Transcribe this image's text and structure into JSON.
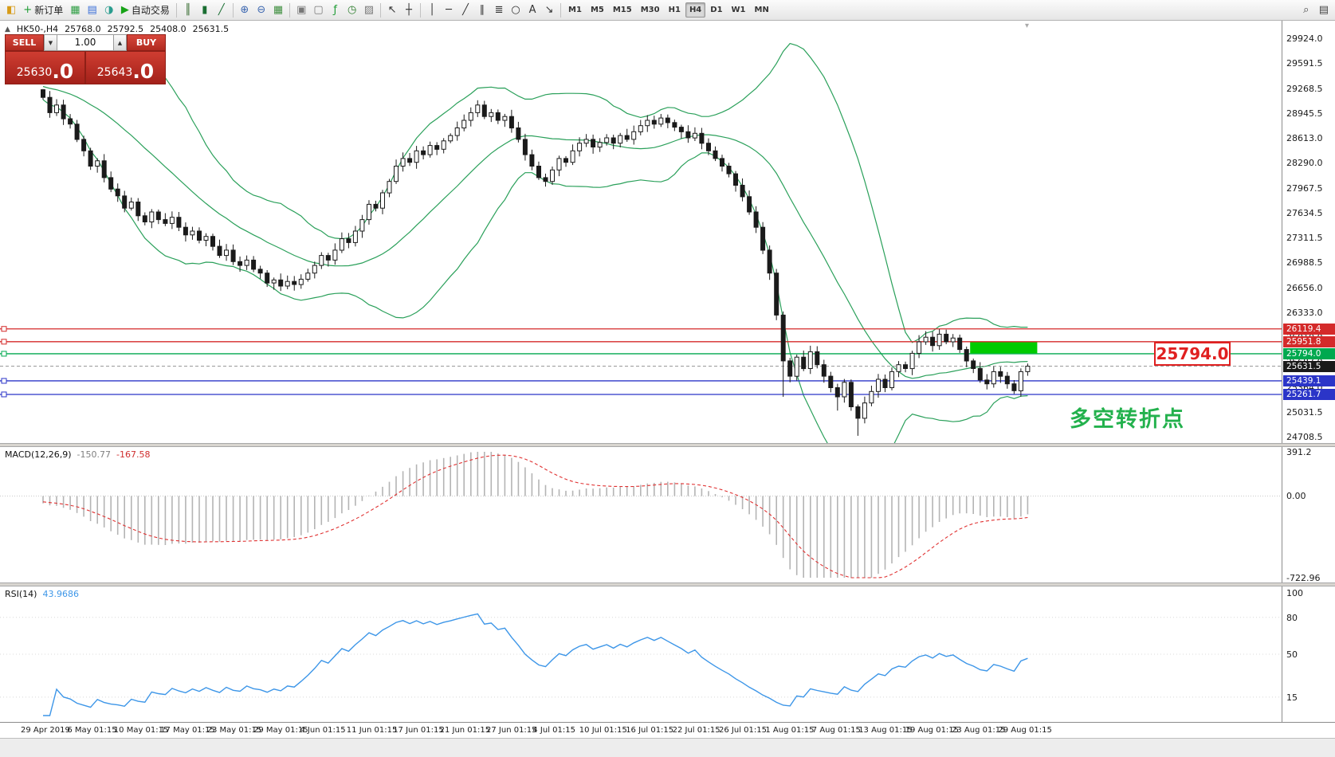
{
  "toolbar": {
    "groups": [
      {
        "items": [
          {
            "name": "app-logo",
            "glyph": "◧",
            "color": "#d79b18"
          },
          {
            "name": "new-order-button",
            "glyph": "+",
            "color": "#1f9d35",
            "label": "新订单"
          },
          {
            "name": "new-chart-button",
            "glyph": "▦",
            "color": "#2f9e44"
          },
          {
            "name": "profiles-button",
            "glyph": "▤",
            "color": "#3a6fd8"
          },
          {
            "name": "data-window-button",
            "glyph": "◑",
            "color": "#2b9d8f"
          },
          {
            "name": "autotrading-button",
            "glyph": "▶",
            "color": "#17a317",
            "label": "自动交易"
          }
        ]
      },
      {
        "items": [
          {
            "name": "bar-chart-button",
            "glyph": "║",
            "color": "#356a2e"
          },
          {
            "name": "candlestick-chart-button",
            "glyph": "▮",
            "color": "#1a6e32"
          },
          {
            "name": "line-chart-button",
            "glyph": "╱",
            "color": "#1a6e32"
          }
        ]
      },
      {
        "items": [
          {
            "name": "zoom-in-button",
            "glyph": "⊕",
            "color": "#3b66b0"
          },
          {
            "name": "zoom-out-button",
            "glyph": "⊖",
            "color": "#3b66b0"
          },
          {
            "name": "tile-windows-button",
            "glyph": "▦",
            "color": "#3f8f3f"
          }
        ]
      },
      {
        "items": [
          {
            "name": "arrange-windows-button",
            "glyph": "▣",
            "color": "#777777"
          },
          {
            "name": "cascade-windows-button",
            "glyph": "▢",
            "color": "#777777"
          },
          {
            "name": "indicators-button",
            "glyph": "ƒ",
            "color": "#1f9d35"
          },
          {
            "name": "periods-button",
            "glyph": "◷",
            "color": "#2b7d2b"
          },
          {
            "name": "templates-button",
            "glyph": "▨",
            "color": "#777777"
          }
        ]
      },
      {
        "items": [
          {
            "name": "cursor-button",
            "glyph": "↖",
            "color": "#333333"
          },
          {
            "name": "crosshair-button",
            "glyph": "┼",
            "color": "#333333"
          }
        ]
      },
      {
        "items": [
          {
            "name": "vertical-line-button",
            "glyph": "│",
            "color": "#333333"
          },
          {
            "name": "horizontal-line-button",
            "glyph": "─",
            "color": "#333333"
          },
          {
            "name": "trendline-button",
            "glyph": "╱",
            "color": "#333333"
          },
          {
            "name": "channel-button",
            "glyph": "∥",
            "color": "#333333"
          },
          {
            "name": "fibonacci-button",
            "glyph": "≣",
            "color": "#333333"
          },
          {
            "name": "shapes-button",
            "glyph": "○",
            "color": "#333333"
          },
          {
            "name": "text-button",
            "glyph": "A",
            "color": "#333333"
          },
          {
            "name": "arrows-button",
            "glyph": "↘",
            "color": "#333333"
          }
        ]
      },
      {
        "items": [
          {
            "name": "timeframe-m1",
            "text": "M1"
          },
          {
            "name": "timeframe-m5",
            "text": "M5"
          },
          {
            "name": "timeframe-m15",
            "text": "M15"
          },
          {
            "name": "timeframe-m30",
            "text": "M30"
          },
          {
            "name": "timeframe-h1",
            "text": "H1"
          },
          {
            "name": "timeframe-h4",
            "text": "H4",
            "active": true
          },
          {
            "name": "timeframe-d1",
            "text": "D1"
          },
          {
            "name": "timeframe-w1",
            "text": "W1"
          },
          {
            "name": "timeframe-mn",
            "text": "MN"
          }
        ]
      }
    ],
    "right_items": [
      {
        "name": "search-button",
        "glyph": "⌕",
        "color": "#444444"
      },
      {
        "name": "window-list-button",
        "glyph": "▤",
        "color": "#444444"
      }
    ]
  },
  "one_click": {
    "collapse_glyph": "▲",
    "sell_label": "SELL",
    "buy_label": "BUY",
    "lots": "1.00",
    "lots_down_glyph": "▼",
    "lots_up_glyph": "▲",
    "sell_price_main": "25630",
    "sell_price_big": ".0",
    "buy_price_main": "25643",
    "buy_price_big": ".0"
  },
  "chart": {
    "header": {
      "symbol_period": "HK50-,H4",
      "open": "25768.0",
      "high": "25792.5",
      "low": "25408.0",
      "close": "25631.5"
    },
    "shift_marker_glyph": "▾",
    "price_axis_labels": [
      "29924.0",
      "29591.5",
      "29268.5",
      "28945.5",
      "28613.0",
      "28290.0",
      "27967.5",
      "27634.5",
      "27311.5",
      "26988.5",
      "26656.0",
      "26333.0",
      "26010.0",
      "25687.0",
      "25364.0",
      "25031.5",
      "24708.5"
    ],
    "price_tags": [
      {
        "text": "26119.4",
        "price": 26119.4,
        "bg": "#d42a2a"
      },
      {
        "text": "25951.8",
        "price": 25951.8,
        "bg": "#d42a2a"
      },
      {
        "text": "25794.0",
        "price": 25794.0,
        "bg": "#00a94f"
      },
      {
        "text": "25631.5",
        "price": 25631.5,
        "bg": "#1a1a1a"
      },
      {
        "text": "25439.1",
        "price": 25439.1,
        "bg": "#2b35c8"
      },
      {
        "text": "25261.7",
        "price": 25261.7,
        "bg": "#2b35c8"
      }
    ],
    "levels": [
      {
        "price": 26119.4,
        "color": "#d42a2a"
      },
      {
        "price": 25951.8,
        "color": "#d42a2a"
      },
      {
        "price": 25794.0,
        "color": "#00a94f"
      },
      {
        "price": 25439.1,
        "color": "#2b35c8"
      },
      {
        "price": 25261.7,
        "color": "#2b35c8"
      }
    ],
    "last_price": 25631.5,
    "big_price_label": "25794.0",
    "annotation": "多空转折点",
    "highlight_rect": {
      "price_top": 25945,
      "price_bottom": 25800,
      "start_index": 137,
      "end_x_pad": 12,
      "color": "#00cb00"
    }
  },
  "chart_data": {
    "type": "candlestick",
    "symbol": "HK50-",
    "timeframe": "H4",
    "y_range": [
      24708.5,
      29924.0
    ],
    "first_open": 29250,
    "closes": [
      29150,
      28950,
      29050,
      28870,
      28800,
      28600,
      28450,
      28250,
      28320,
      28100,
      27950,
      27860,
      27700,
      27780,
      27600,
      27520,
      27650,
      27550,
      27500,
      27580,
      27450,
      27350,
      27400,
      27280,
      27330,
      27200,
      27080,
      27150,
      27000,
      26950,
      27020,
      26900,
      26850,
      26720,
      26760,
      26680,
      26740,
      26700,
      26770,
      26850,
      26950,
      27080,
      27020,
      27150,
      27300,
      27250,
      27400,
      27550,
      27750,
      27700,
      27900,
      28050,
      28250,
      28350,
      28300,
      28450,
      28400,
      28520,
      28470,
      28580,
      28650,
      28750,
      28850,
      28950,
      29050,
      28900,
      28950,
      28850,
      28900,
      28750,
      28600,
      28400,
      28250,
      28100,
      28050,
      28200,
      28350,
      28300,
      28450,
      28550,
      28600,
      28500,
      28560,
      28620,
      28550,
      28650,
      28600,
      28700,
      28780,
      28850,
      28800,
      28880,
      28820,
      28760,
      28700,
      28620,
      28680,
      28550,
      28450,
      28350,
      28250,
      28150,
      28000,
      27850,
      27650,
      27450,
      27150,
      26850,
      26300,
      25700,
      25500,
      25750,
      25600,
      25820,
      25650,
      25500,
      25350,
      25230,
      25420,
      25100,
      24950,
      25150,
      25300,
      25460,
      25350,
      25560,
      25650,
      25600,
      25800,
      25950,
      26010,
      25900,
      26050,
      25950,
      26000,
      25850,
      25700,
      25600,
      25450,
      25400,
      25560,
      25500,
      25400,
      25310,
      25560,
      25631.5
    ],
    "wick_overrides": {
      "0": {
        "high": 29260
      },
      "109": {
        "low": 25230
      },
      "117": {
        "low": 25050
      },
      "120": {
        "low": 24720
      }
    },
    "bollinger": {
      "period": 20,
      "deviation": 2,
      "color": "#2aa05a"
    },
    "indicators": [
      {
        "type": "macd",
        "label": "MACD(12,26,9)",
        "params": [
          12,
          26,
          9
        ],
        "values_text": [
          "-150.77",
          "-167.58"
        ],
        "axis_labels": [
          "391.2",
          "0.00",
          "-722.96"
        ],
        "y_range": [
          -722.96,
          391.2
        ]
      },
      {
        "type": "rsi",
        "label": "RSI(14)",
        "period": 14,
        "value_text": "43.9686",
        "axis_labels": [
          "100",
          "80",
          "50",
          "15"
        ],
        "levels": [
          80,
          50,
          15
        ],
        "y_range": [
          0,
          100
        ]
      }
    ],
    "x_labels": [
      "29 Apr 2019",
      "6 May 01:15",
      "10 May 01:15",
      "17 May 01:15",
      "23 May 01:15",
      "29 May 01:15",
      "4 Jun 01:15",
      "11 Jun 01:15",
      "17 Jun 01:15",
      "21 Jun 01:15",
      "27 Jun 01:15",
      "4 Jul 01:15",
      "10 Jul 01:15",
      "16 Jul 01:15",
      "22 Jul 01:15",
      "26 Jul 01:15",
      "1 Aug 01:15",
      "7 Aug 01:15",
      "13 Aug 01:15",
      "19 Aug 01:15",
      "23 Aug 01:15",
      "29 Aug 01:15"
    ]
  }
}
